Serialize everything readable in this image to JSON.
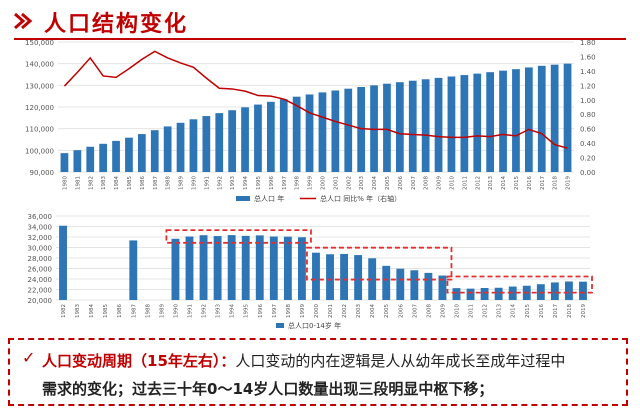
{
  "header": {
    "title": "人口结构变化"
  },
  "note": {
    "lead": "人口变动周期（15年左右）：",
    "line1_rest": "人口变动的内在逻辑是人从幼年成长至成年过程中",
    "line2": "需求的变化；过去三十年0～14岁人口数量出现三段明显中枢下移；"
  },
  "colors": {
    "bar": "#2e75b6",
    "line": "#c00000",
    "accent": "#c00000",
    "dashed_box": "#e03030"
  },
  "chart_data": [
    {
      "type": "bar",
      "categories": [
        "1980",
        "1981",
        "1982",
        "1983",
        "1984",
        "1985",
        "1986",
        "1987",
        "1988",
        "1989",
        "1990",
        "1991",
        "1992",
        "1993",
        "1994",
        "1995",
        "1996",
        "1997",
        "1998",
        "1999",
        "2000",
        "2001",
        "2002",
        "2003",
        "2004",
        "2005",
        "2006",
        "2007",
        "2008",
        "2009",
        "2010",
        "2011",
        "2012",
        "2013",
        "2014",
        "2015",
        "2016",
        "2017",
        "2018",
        "2019"
      ],
      "series": [
        {
          "name": "总人口 年",
          "axis": "left",
          "values": [
            98705,
            100072,
            101654,
            103008,
            104357,
            105851,
            107507,
            109300,
            111026,
            112704,
            114333,
            115823,
            117171,
            118517,
            119850,
            121121,
            122389,
            123626,
            124761,
            125786,
            126743,
            127627,
            128453,
            129227,
            129988,
            130756,
            131448,
            132129,
            132802,
            133450,
            134091,
            134735,
            135404,
            136072,
            136782,
            137462,
            138271,
            139008,
            139538,
            140005
          ]
        },
        {
          "name": "总人口 同比% 年（右轴）",
          "type": "line",
          "axis": "right",
          "values": [
            1.19,
            1.38,
            1.58,
            1.33,
            1.31,
            1.43,
            1.56,
            1.67,
            1.58,
            1.51,
            1.45,
            1.3,
            1.16,
            1.15,
            1.12,
            1.06,
            1.05,
            1.01,
            0.92,
            0.82,
            0.76,
            0.7,
            0.65,
            0.6,
            0.59,
            0.59,
            0.53,
            0.52,
            0.51,
            0.49,
            0.48,
            0.48,
            0.5,
            0.49,
            0.52,
            0.5,
            0.59,
            0.53,
            0.38,
            0.33
          ]
        }
      ],
      "y_left": {
        "ticks": [
          "90,000",
          "100,000",
          "110,000",
          "120,000",
          "130,000",
          "140,000",
          "150,000"
        ],
        "range": [
          90000,
          150000
        ]
      },
      "y_right": {
        "ticks": [
          "0.00",
          "0.20",
          "0.40",
          "0.60",
          "0.80",
          "1.00",
          "1.20",
          "1.40",
          "1.60",
          "1.80"
        ],
        "range": [
          0,
          1.8
        ]
      },
      "legend": [
        "总人口 年",
        "总人口 同比% 年（右轴）"
      ],
      "legend_position": "bottom"
    },
    {
      "type": "bar",
      "categories": [
        "1982",
        "1983",
        "1984",
        "1985",
        "1986",
        "1987",
        "1988",
        "1989",
        "1990",
        "1991",
        "1992",
        "1993",
        "1994",
        "1995",
        "1996",
        "1997",
        "1998",
        "1999",
        "2000",
        "2001",
        "2002",
        "2003",
        "2004",
        "2005",
        "2006",
        "2007",
        "2008",
        "2009",
        "2010",
        "2011",
        "2012",
        "2013",
        "2014",
        "2015",
        "2016",
        "2017",
        "2018",
        "2019"
      ],
      "series": [
        {
          "name": "总人口0-14岁 年",
          "values": [
            34146,
            null,
            null,
            null,
            null,
            31347,
            null,
            null,
            31659,
            32095,
            32339,
            32177,
            32360,
            32218,
            32311,
            32093,
            32064,
            31950,
            29012,
            28716,
            28774,
            28559,
            27947,
            26504,
            25961,
            25660,
            25166,
            24659,
            22259,
            22164,
            22287,
            22329,
            22558,
            22715,
            23008,
            23348,
            23523,
            23492
          ]
        }
      ],
      "y": {
        "ticks": [
          "20,000",
          "22,000",
          "24,000",
          "26,000",
          "28,000",
          "30,000",
          "32,000",
          "34,000",
          "36,000"
        ],
        "range": [
          20000,
          36000
        ]
      },
      "highlight_periods": [
        [
          "1990",
          "1999"
        ],
        [
          "2000",
          "2009"
        ],
        [
          "2010",
          "2019"
        ]
      ],
      "legend": [
        "总人口0-14岁 年"
      ],
      "legend_position": "bottom"
    }
  ]
}
